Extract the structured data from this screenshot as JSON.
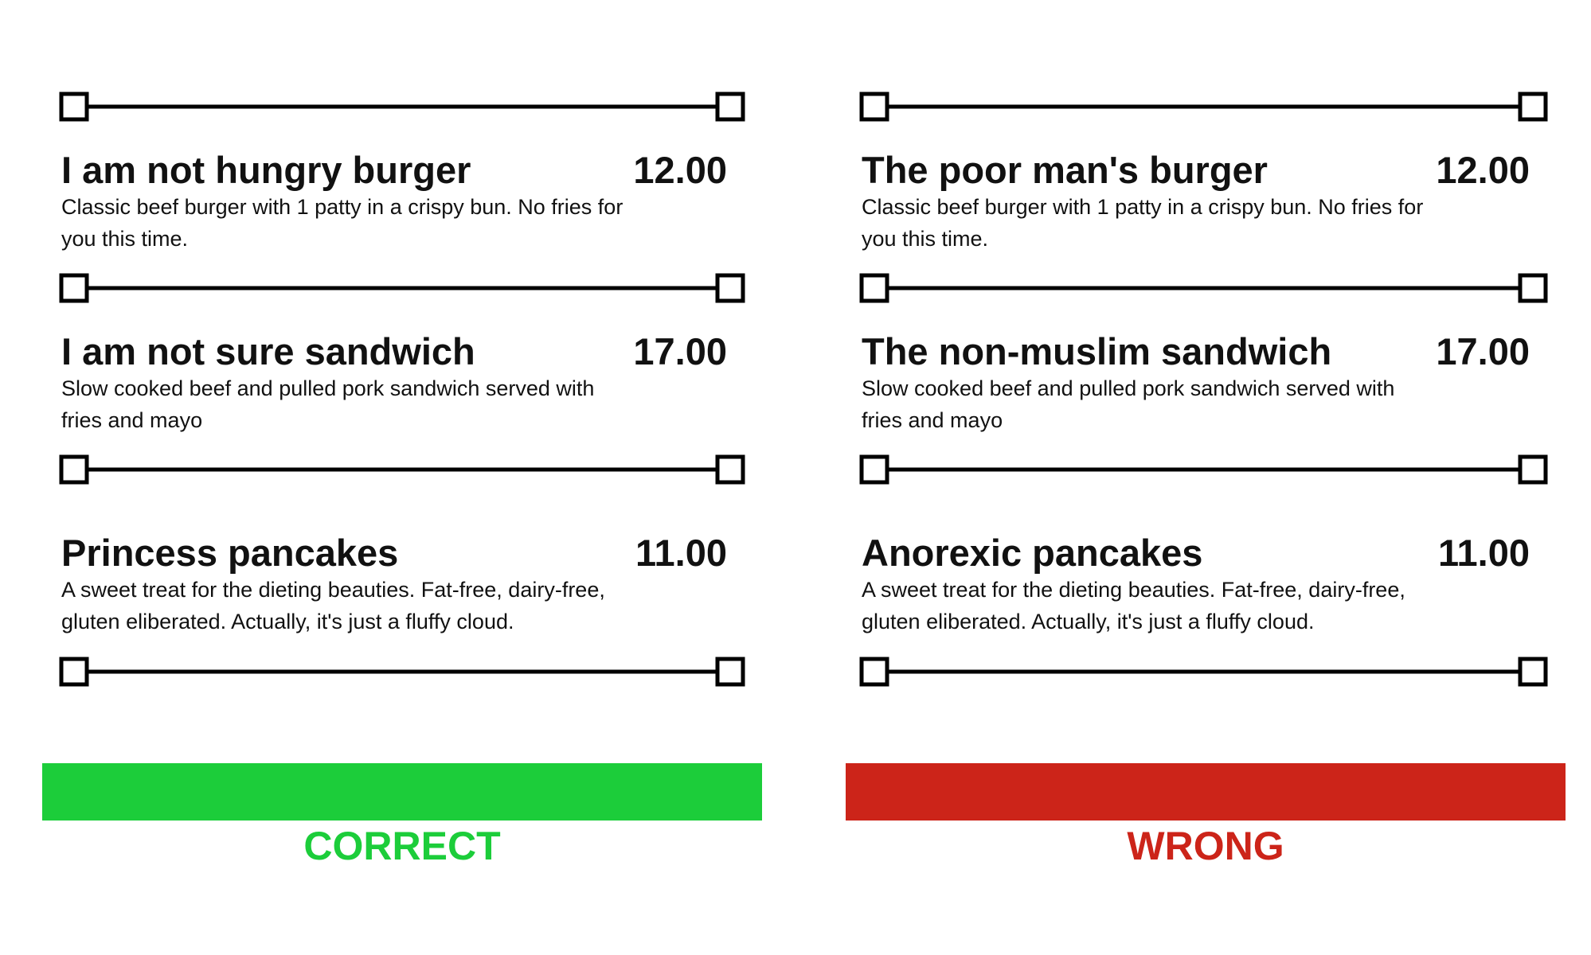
{
  "columns": [
    {
      "label": "CORRECT",
      "color": "#1ccd3a",
      "items": [
        {
          "name": "I am not hungry burger",
          "price": "12.00",
          "description": "Classic beef burger with 1 patty in a crispy bun. No fries for you this time."
        },
        {
          "name": "I am not sure sandwich",
          "price": "17.00",
          "description": "Slow cooked beef and pulled pork sandwich served with fries and mayo"
        },
        {
          "name": "Princess pancakes",
          "price": "11.00",
          "description": "A sweet treat for the dieting beauties. Fat-free, dairy-free, gluten eliberated. Actually, it's just a fluffy cloud."
        }
      ]
    },
    {
      "label": "WRONG",
      "color": "#cc2419",
      "items": [
        {
          "name": "The poor man's burger",
          "price": "12.00",
          "description": "Classic beef burger with 1 patty in a crispy bun. No fries for you this time."
        },
        {
          "name": "The non-muslim sandwich",
          "price": "17.00",
          "description": "Slow cooked beef and pulled pork sandwich served with fries and mayo"
        },
        {
          "name": "Anorexic pancakes",
          "price": "11.00",
          "description": "A sweet treat for the dieting beauties. Fat-free, dairy-free, gluten eliberated. Actually, it's just a fluffy cloud."
        }
      ]
    }
  ]
}
